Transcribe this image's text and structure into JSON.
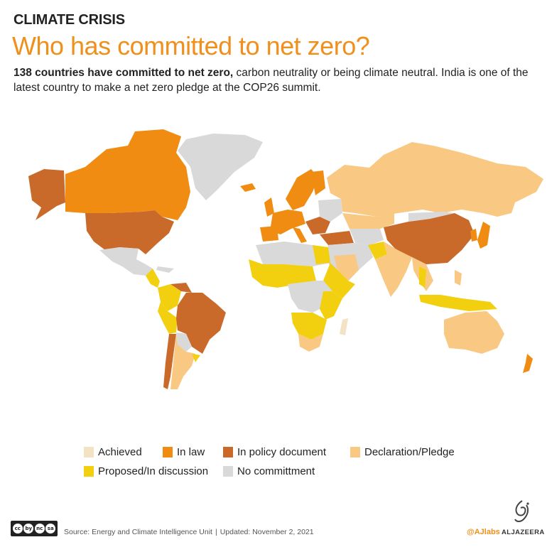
{
  "header": {
    "kicker": "CLIMATE CRISIS",
    "title": "Who has committed to net zero?",
    "intro_bold": "138 countries have committed to net zero,",
    "intro_rest": " carbon neutrality or being climate neutral. India is one of the latest country to make a net zero pledge at the COP26 summit."
  },
  "map": {
    "colors": {
      "achieved": "#f3e2c3",
      "in_law": "#f08c11",
      "in_policy_document": "#c96a2b",
      "declaration_pledge": "#f9c882",
      "proposed_in_discussion": "#f2d010",
      "no_commitment": "#d9d9d9"
    }
  },
  "legend": {
    "items": [
      {
        "label": "Achieved",
        "color": "#f3e2c3"
      },
      {
        "label": "In law",
        "color": "#f08c11"
      },
      {
        "label": "In policy document",
        "color": "#c96a2b"
      },
      {
        "label": "Declaration/Pledge",
        "color": "#f9c882"
      },
      {
        "label": "Proposed/In discussion",
        "color": "#f2d010"
      },
      {
        "label": "No committment",
        "color": "#d9d9d9"
      }
    ]
  },
  "footer": {
    "license_icons": [
      "cc",
      "by",
      "nc",
      "sa"
    ],
    "source": "Source: Energy and Climate Intelligence Unit",
    "separator": "|",
    "updated": "Updated: November 2, 2021",
    "handle": "@AJlabs",
    "brand": "ALJAZEERA"
  }
}
